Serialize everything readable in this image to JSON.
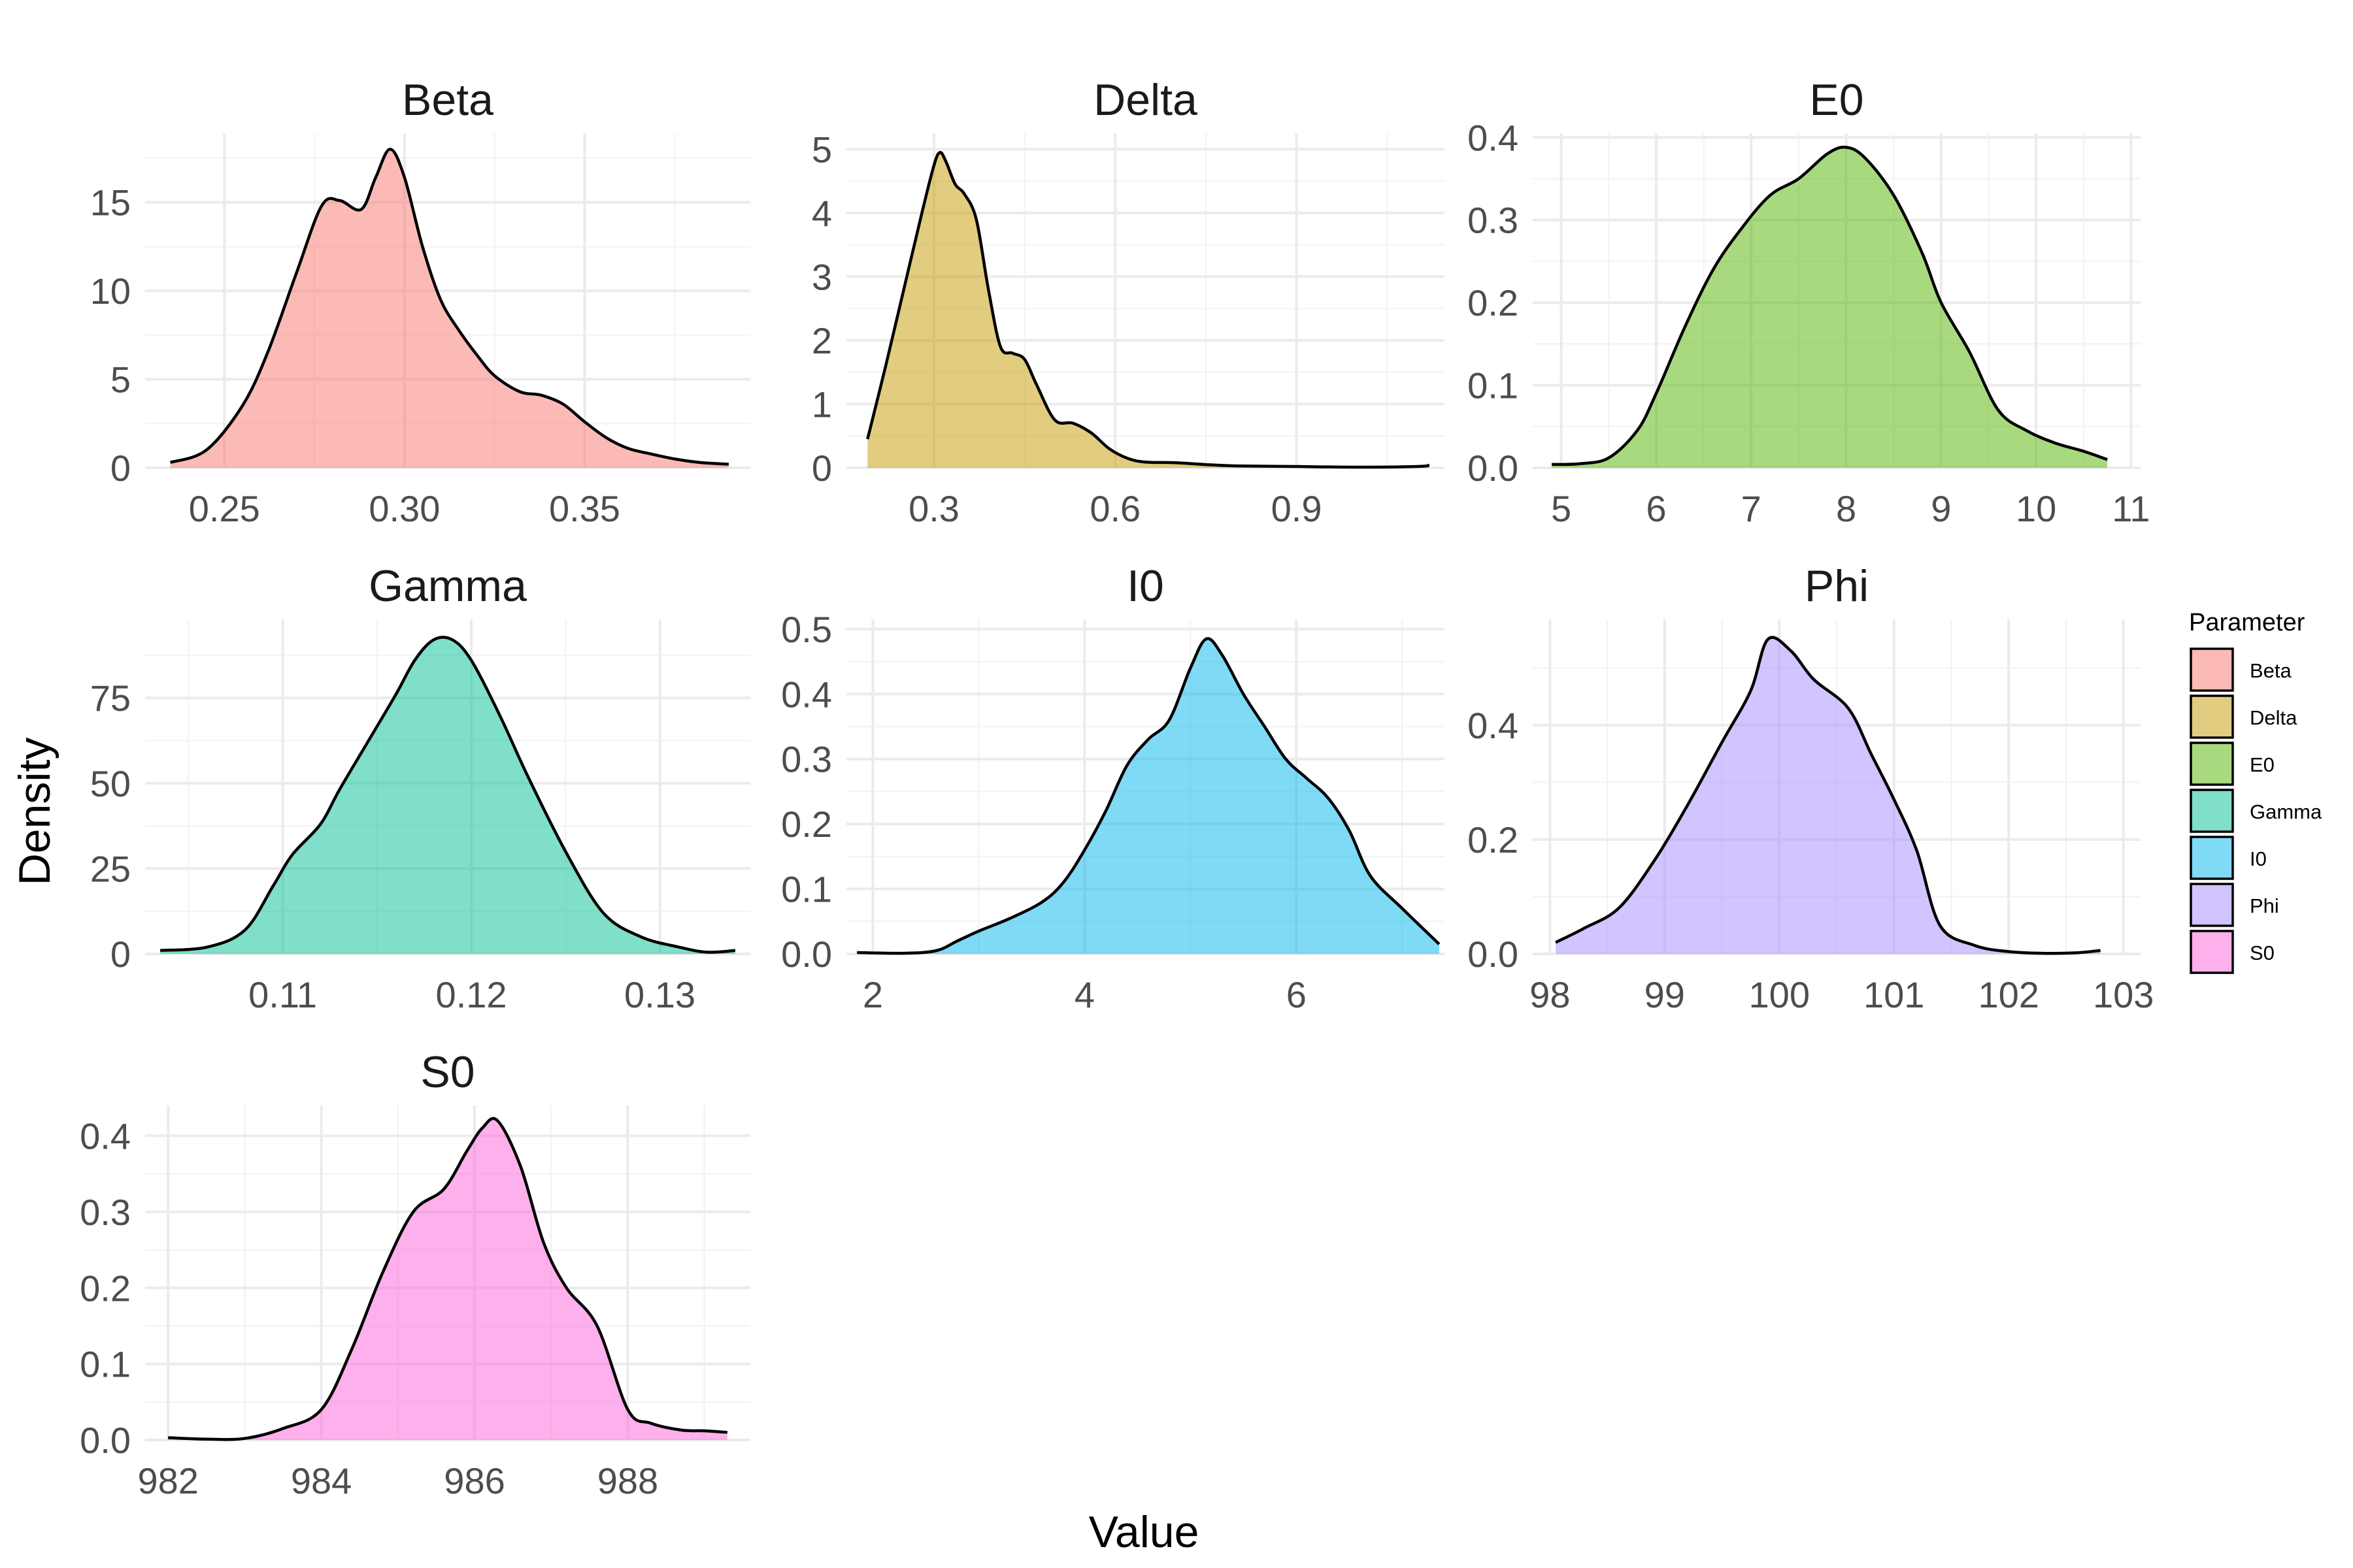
{
  "chart_data": {
    "type": "area",
    "title": "",
    "xlabel": "Value",
    "ylabel": "Density",
    "legend": {
      "title": "Parameter",
      "position": "right",
      "entries": [
        {
          "label": "Beta",
          "color": "#F8766D"
        },
        {
          "label": "Delta",
          "color": "#C49A00"
        },
        {
          "label": "E0",
          "color": "#53B400"
        },
        {
          "label": "Gamma",
          "color": "#00C094"
        },
        {
          "label": "I0",
          "color": "#00B6EB"
        },
        {
          "label": "Phi",
          "color": "#A58AFF"
        },
        {
          "label": "S0",
          "color": "#FB61D7"
        }
      ]
    },
    "fill_opacity": 0.5,
    "grid": true,
    "panels": [
      {
        "name": "Beta",
        "color": "#F8766D",
        "xlim": [
          0.228,
          0.396
        ],
        "ylim": [
          0,
          18.9
        ],
        "xticks": [
          0.25,
          0.3,
          0.35
        ],
        "xtick_labels": [
          "0.25",
          "0.30",
          "0.35"
        ],
        "yticks": [
          0,
          5,
          10,
          15
        ],
        "ytick_labels": [
          "0",
          "5",
          "10",
          "15"
        ],
        "x": [
          0.235,
          0.245,
          0.255,
          0.262,
          0.27,
          0.277,
          0.282,
          0.288,
          0.292,
          0.296,
          0.3,
          0.305,
          0.31,
          0.315,
          0.32,
          0.325,
          0.332,
          0.338,
          0.344,
          0.35,
          0.356,
          0.362,
          0.368,
          0.375,
          0.382,
          0.39
        ],
        "y": [
          0.3,
          1.0,
          3.5,
          6.5,
          11.0,
          14.8,
          15.1,
          14.6,
          16.4,
          18.0,
          16.4,
          12.5,
          9.5,
          7.8,
          6.4,
          5.2,
          4.3,
          4.1,
          3.6,
          2.6,
          1.7,
          1.1,
          0.8,
          0.5,
          0.3,
          0.2
        ]
      },
      {
        "name": "Delta",
        "color": "#C49A00",
        "xlim": [
          0.155,
          1.145
        ],
        "ylim": [
          0,
          5.25
        ],
        "xticks": [
          0.3,
          0.6,
          0.9
        ],
        "xtick_labels": [
          "0.3",
          "0.6",
          "0.9"
        ],
        "yticks": [
          0,
          1,
          2,
          3,
          4,
          5
        ],
        "ytick_labels": [
          "0",
          "1",
          "2",
          "3",
          "4",
          "5"
        ],
        "x": [
          0.19,
          0.22,
          0.25,
          0.28,
          0.3,
          0.31,
          0.32,
          0.335,
          0.35,
          0.37,
          0.39,
          0.41,
          0.43,
          0.45,
          0.47,
          0.5,
          0.53,
          0.56,
          0.59,
          0.62,
          0.65,
          0.7,
          0.75,
          0.8,
          0.9,
          1.0,
          1.1,
          1.12
        ],
        "y": [
          0.45,
          1.6,
          2.8,
          4.0,
          4.75,
          4.95,
          4.8,
          4.45,
          4.3,
          3.9,
          2.8,
          1.9,
          1.8,
          1.7,
          1.3,
          0.75,
          0.7,
          0.55,
          0.3,
          0.15,
          0.09,
          0.08,
          0.05,
          0.03,
          0.02,
          0.01,
          0.02,
          0.04
        ]
      },
      {
        "name": "E0",
        "color": "#53B400",
        "xlim": [
          4.7,
          11.1
        ],
        "ylim": [
          0,
          0.405
        ],
        "xticks": [
          5,
          6,
          7,
          8,
          9,
          10,
          11
        ],
        "xtick_labels": [
          "5",
          "6",
          "7",
          "8",
          "9",
          "10",
          "11"
        ],
        "yticks": [
          0,
          0.1,
          0.2,
          0.3,
          0.4
        ],
        "ytick_labels": [
          "0.0",
          "0.1",
          "0.2",
          "0.3",
          "0.4"
        ],
        "x": [
          4.9,
          5.2,
          5.5,
          5.8,
          6.0,
          6.3,
          6.6,
          6.9,
          7.2,
          7.5,
          7.8,
          8.0,
          8.2,
          8.5,
          8.8,
          9.0,
          9.3,
          9.6,
          9.9,
          10.2,
          10.5,
          10.75
        ],
        "y": [
          0.004,
          0.005,
          0.012,
          0.045,
          0.09,
          0.17,
          0.24,
          0.29,
          0.33,
          0.35,
          0.38,
          0.388,
          0.375,
          0.33,
          0.26,
          0.2,
          0.14,
          0.07,
          0.045,
          0.03,
          0.02,
          0.01
        ]
      },
      {
        "name": "Gamma",
        "color": "#00C094",
        "xlim": [
          0.1027,
          0.1348
        ],
        "ylim": [
          0,
          98
        ],
        "xticks": [
          0.11,
          0.12,
          0.13
        ],
        "xtick_labels": [
          "0.11",
          "0.12",
          "0.13"
        ],
        "yticks": [
          0,
          25,
          50,
          75
        ],
        "ytick_labels": [
          "0",
          "25",
          "50",
          "75"
        ],
        "x": [
          0.1035,
          0.106,
          0.108,
          0.1095,
          0.1105,
          0.112,
          0.113,
          0.1145,
          0.116,
          0.117,
          0.118,
          0.119,
          0.12,
          0.1215,
          0.123,
          0.125,
          0.127,
          0.129,
          0.131,
          0.1325,
          0.134
        ],
        "y": [
          1,
          2,
          7,
          20,
          29,
          38,
          48,
          62,
          76,
          86,
          92,
          92,
          86,
          70,
          52,
          30,
          12,
          5,
          2,
          0.5,
          1
        ]
      },
      {
        "name": "I0",
        "color": "#00B6EB",
        "xlim": [
          1.75,
          7.4
        ],
        "ylim": [
          0,
          0.515
        ],
        "xticks": [
          2,
          4,
          6
        ],
        "xtick_labels": [
          "2",
          "4",
          "6"
        ],
        "yticks": [
          0,
          0.1,
          0.2,
          0.3,
          0.4,
          0.5
        ],
        "ytick_labels": [
          "0.0",
          "0.1",
          "0.2",
          "0.3",
          "0.4",
          "0.5"
        ],
        "x": [
          1.85,
          2.3,
          2.6,
          2.8,
          3.0,
          3.3,
          3.6,
          3.8,
          4.0,
          4.2,
          4.4,
          4.6,
          4.8,
          5.0,
          5.15,
          5.3,
          5.5,
          5.7,
          5.9,
          6.1,
          6.3,
          6.5,
          6.7,
          7.0,
          7.35
        ],
        "y": [
          0.002,
          0.001,
          0.005,
          0.02,
          0.035,
          0.055,
          0.08,
          0.11,
          0.16,
          0.22,
          0.29,
          0.33,
          0.36,
          0.44,
          0.485,
          0.46,
          0.4,
          0.35,
          0.3,
          0.27,
          0.24,
          0.19,
          0.12,
          0.07,
          0.015
        ]
      },
      {
        "name": "Phi",
        "color": "#A58AFF",
        "xlim": [
          97.85,
          103.15
        ],
        "ylim": [
          0,
          0.585
        ],
        "xticks": [
          98,
          99,
          100,
          101,
          102,
          103
        ],
        "xtick_labels": [
          "98",
          "99",
          "100",
          "101",
          "102",
          "103"
        ],
        "yticks": [
          0,
          0.2,
          0.4
        ],
        "ytick_labels": [
          "0.0",
          "0.2",
          "0.4"
        ],
        "x": [
          98.05,
          98.3,
          98.6,
          98.9,
          99.2,
          99.5,
          99.75,
          99.9,
          100.1,
          100.3,
          100.6,
          100.8,
          101.0,
          101.2,
          101.4,
          101.7,
          102.0,
          102.3,
          102.6,
          102.8
        ],
        "y": [
          0.02,
          0.045,
          0.08,
          0.16,
          0.26,
          0.37,
          0.46,
          0.55,
          0.53,
          0.48,
          0.43,
          0.35,
          0.27,
          0.18,
          0.05,
          0.015,
          0.004,
          0.001,
          0.002,
          0.006
        ]
      },
      {
        "name": "S0",
        "color": "#FB61D7",
        "xlim": [
          981.7,
          989.6
        ],
        "ylim": [
          0,
          0.44
        ],
        "xticks": [
          982,
          984,
          986,
          988
        ],
        "xtick_labels": [
          "982",
          "984",
          "986",
          "988"
        ],
        "yticks": [
          0,
          0.1,
          0.2,
          0.3,
          0.4
        ],
        "ytick_labels": [
          "0.0",
          "0.1",
          "0.2",
          "0.3",
          "0.4"
        ],
        "x": [
          982.0,
          982.5,
          983.0,
          983.5,
          984.0,
          984.4,
          984.8,
          985.2,
          985.6,
          985.9,
          986.1,
          986.3,
          986.6,
          986.9,
          987.2,
          987.6,
          988.0,
          988.3,
          988.7,
          989.0,
          989.3
        ],
        "y": [
          0.003,
          0.001,
          0.002,
          0.015,
          0.04,
          0.12,
          0.22,
          0.3,
          0.33,
          0.38,
          0.41,
          0.42,
          0.36,
          0.26,
          0.2,
          0.15,
          0.04,
          0.022,
          0.013,
          0.012,
          0.01
        ]
      }
    ]
  }
}
